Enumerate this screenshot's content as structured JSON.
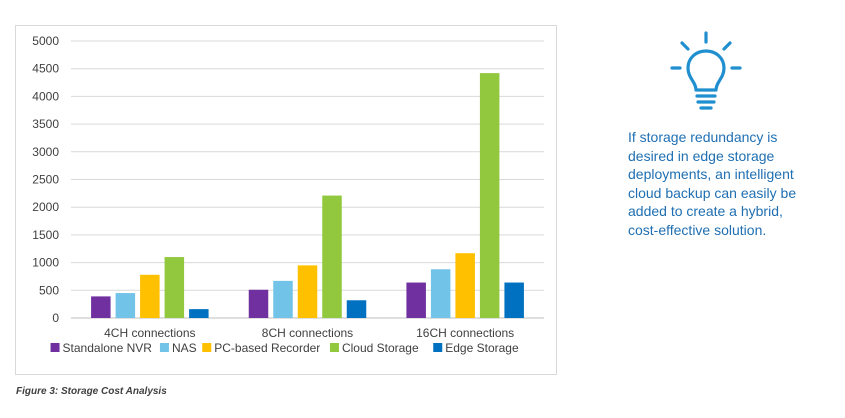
{
  "chart_data": {
    "type": "bar",
    "categories": [
      "4CH connections",
      "8CH connections",
      "16CH connections"
    ],
    "series": [
      {
        "name": "Standalone NVR",
        "values": [
          390,
          510,
          640
        ],
        "color": "#7030a0"
      },
      {
        "name": "NAS",
        "values": [
          450,
          670,
          880
        ],
        "color": "#71c3e8"
      },
      {
        "name": "PC-based Recorder",
        "values": [
          780,
          950,
          1170
        ],
        "color": "#ffc000"
      },
      {
        "name": "Cloud Storage",
        "values": [
          1100,
          2210,
          4420
        ],
        "color": "#92c83e"
      },
      {
        "name": "Edge Storage",
        "values": [
          160,
          320,
          640
        ],
        "color": "#0070c0"
      }
    ],
    "ylim": [
      0,
      5000
    ],
    "yticks": [
      "0",
      "500",
      "1000",
      "1500",
      "2000",
      "2500",
      "3000",
      "3500",
      "4000",
      "4500",
      "5000"
    ],
    "grid": true,
    "legend_position": "bottom",
    "title": "",
    "xlabel": "",
    "ylabel": ""
  },
  "caption": "Figure 3: Storage Cost Analysis",
  "tip": {
    "icon": "lightbulb-icon",
    "icon_color": "#1f8fd0",
    "text_color": "#1f6fb2",
    "text": "If storage redundancy is desired in edge storage deployments, an intelligent cloud backup can easily be added to create a hybrid, cost-effective solution."
  }
}
